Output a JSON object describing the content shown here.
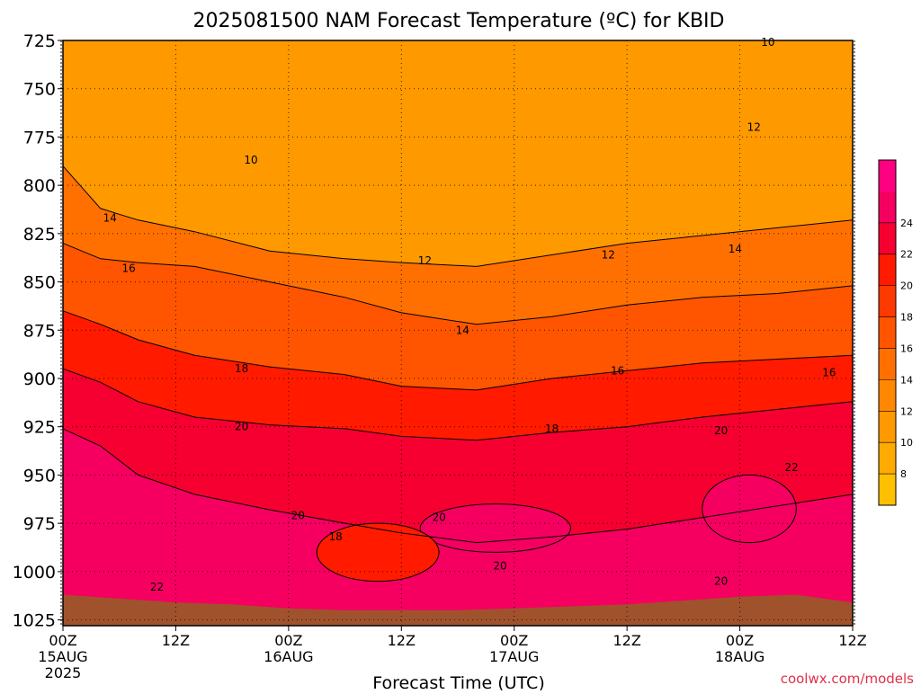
{
  "chart_data": {
    "type": "heatmap",
    "title": "2025081500 NAM Forecast Temperature (ºC) for KBID",
    "xlabel": "Forecast Time (UTC)",
    "ylabel": "",
    "credit": "coolwx.com/models",
    "x_ticks": [
      {
        "hours": 0,
        "label": "00Z",
        "date": "15AUG",
        "year": "2025"
      },
      {
        "hours": 12,
        "label": "12Z"
      },
      {
        "hours": 24,
        "label": "00Z",
        "date": "16AUG"
      },
      {
        "hours": 36,
        "label": "12Z"
      },
      {
        "hours": 48,
        "label": "00Z",
        "date": "17AUG"
      },
      {
        "hours": 60,
        "label": "12Z"
      },
      {
        "hours": 72,
        "label": "00Z",
        "date": "18AUG"
      },
      {
        "hours": 84,
        "label": "12Z"
      }
    ],
    "xlim": [
      0,
      84
    ],
    "pressure_levels": [
      725,
      750,
      775,
      800,
      825,
      850,
      875,
      900,
      925,
      950,
      975,
      1000,
      1025
    ],
    "ylim": [
      725,
      1028
    ],
    "colorbar": {
      "levels": [
        6,
        8,
        10,
        12,
        14,
        16,
        18,
        20,
        22,
        24,
        26,
        28
      ],
      "labels": [
        "8",
        "10",
        "12",
        "14",
        "16",
        "18",
        "20",
        "22",
        "24"
      ],
      "colors": [
        "#ffc000",
        "#ffaa00",
        "#ff9900",
        "#ff8800",
        "#ff7000",
        "#ff5500",
        "#ff3a00",
        "#ff1a00",
        "#f50030",
        "#f50060",
        "#ff0080"
      ]
    },
    "temperature_bands": [
      {
        "min": 8,
        "max": 10,
        "color": "#ffc000"
      },
      {
        "min": 10,
        "max": 12,
        "color": "#ff9900"
      },
      {
        "min": 12,
        "max": 14,
        "color": "#ff8800"
      },
      {
        "min": 14,
        "max": 16,
        "color": "#ff7000"
      },
      {
        "min": 16,
        "max": 18,
        "color": "#ff5500"
      },
      {
        "min": 18,
        "max": 20,
        "color": "#ff1a00"
      },
      {
        "min": 20,
        "max": 22,
        "color": "#f50030"
      },
      {
        "min": 22,
        "max": 24,
        "color": "#f50060"
      },
      {
        "min": 24,
        "max": 26,
        "color": "#ff0080"
      }
    ],
    "isotherms": [
      {
        "value": 14,
        "label": "14",
        "x": [
          0,
          4,
          8,
          14,
          22,
          30,
          36,
          44,
          52,
          60,
          68,
          76,
          84
        ],
        "p": [
          790,
          812,
          818,
          824,
          834,
          838,
          840,
          842,
          836,
          830,
          826,
          822,
          818
        ]
      },
      {
        "value": 16,
        "label": "16",
        "x": [
          0,
          4,
          8,
          14,
          22,
          30,
          36,
          44,
          52,
          60,
          68,
          76,
          84
        ],
        "p": [
          830,
          838,
          840,
          842,
          850,
          858,
          866,
          872,
          868,
          862,
          858,
          856,
          852
        ]
      },
      {
        "value": 18,
        "label": "18",
        "x": [
          0,
          4,
          8,
          14,
          22,
          30,
          36,
          44,
          52,
          60,
          68,
          76,
          84
        ],
        "p": [
          865,
          872,
          880,
          888,
          894,
          898,
          904,
          906,
          900,
          896,
          892,
          890,
          888
        ]
      },
      {
        "value": 20,
        "label": "20",
        "x": [
          0,
          4,
          8,
          14,
          22,
          30,
          36,
          44,
          52,
          60,
          68,
          76,
          84
        ],
        "p": [
          895,
          902,
          912,
          920,
          924,
          926,
          930,
          932,
          928,
          925,
          920,
          916,
          912
        ]
      },
      {
        "value": 22,
        "label": "22",
        "x": [
          0,
          4,
          8,
          14,
          22,
          30,
          36,
          44,
          52,
          60,
          68,
          76,
          84
        ],
        "p": [
          926,
          935,
          950,
          960,
          968,
          975,
          980,
          985,
          982,
          978,
          972,
          966,
          960
        ]
      }
    ],
    "contour_labels": [
      {
        "text": "10",
        "hours": 20,
        "p": 787
      },
      {
        "text": "10",
        "hours": 75,
        "p": 726
      },
      {
        "text": "12",
        "hours": 38.5,
        "p": 839
      },
      {
        "text": "12",
        "hours": 58,
        "p": 836
      },
      {
        "text": "12",
        "hours": 73.5,
        "p": 770
      },
      {
        "text": "14",
        "hours": 5,
        "p": 817
      },
      {
        "text": "14",
        "hours": 42.5,
        "p": 875
      },
      {
        "text": "14",
        "hours": 71.5,
        "p": 833
      },
      {
        "text": "16",
        "hours": 7,
        "p": 843
      },
      {
        "text": "16",
        "hours": 59,
        "p": 896
      },
      {
        "text": "16",
        "hours": 81.5,
        "p": 897
      },
      {
        "text": "18",
        "hours": 19,
        "p": 895
      },
      {
        "text": "18",
        "hours": 29,
        "p": 982
      },
      {
        "text": "18",
        "hours": 52,
        "p": 926
      },
      {
        "text": "20",
        "hours": 19,
        "p": 925
      },
      {
        "text": "20",
        "hours": 25,
        "p": 971
      },
      {
        "text": "20",
        "hours": 40,
        "p": 972
      },
      {
        "text": "20",
        "hours": 46.5,
        "p": 997
      },
      {
        "text": "20",
        "hours": 70,
        "p": 927
      },
      {
        "text": "20",
        "hours": 70,
        "p": 1005
      },
      {
        "text": "22",
        "hours": 10,
        "p": 1008
      },
      {
        "text": "22",
        "hours": 77.5,
        "p": 946
      }
    ],
    "warm_cells": [
      {
        "x": [
          38,
          54
        ],
        "p": [
          965,
          990
        ]
      },
      {
        "x": [
          68,
          78
        ],
        "p": [
          950,
          985
        ]
      }
    ],
    "cool_cell_18": {
      "x": [
        27,
        40
      ],
      "p": [
        975,
        1005
      ]
    },
    "surface_pressure": {
      "x": [
        0,
        6,
        12,
        18,
        24,
        30,
        36,
        42,
        48,
        54,
        60,
        66,
        72,
        78,
        84
      ],
      "p": [
        1012,
        1014,
        1016,
        1017,
        1019,
        1020,
        1020,
        1020,
        1019,
        1018,
        1017,
        1015,
        1013,
        1012,
        1016
      ]
    }
  }
}
